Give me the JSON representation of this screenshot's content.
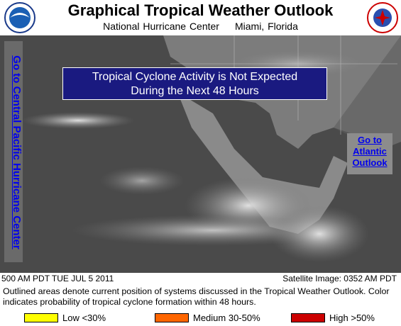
{
  "header": {
    "title": "Graphical Tropical Weather Outlook",
    "center": "National Hurricane Center",
    "location": "Miami, Florida"
  },
  "banner": {
    "line1": "Tropical Cyclone Activity is Not Expected",
    "line2": "During the Next 48 Hours"
  },
  "links": {
    "central_pacific": "Go to Central Pacific Hurricane Center",
    "atlantic": [
      "Go to",
      "Atlantic",
      "Outlook"
    ]
  },
  "status": {
    "issued": "500 AM PDT TUE JUL 5 2011",
    "satellite": "Satellite Image: 0352 AM PDT"
  },
  "caption": "Outlined areas denote current position of systems discussed in the Tropical Weather Outlook. Color indicates probability of tropical cyclone formation within 48 hours.",
  "legend": [
    {
      "label": "Low <30%",
      "color": "#ffff00"
    },
    {
      "label": "Medium 30-50%",
      "color": "#ff6600"
    },
    {
      "label": "High >50%",
      "color": "#cc0000"
    }
  ]
}
